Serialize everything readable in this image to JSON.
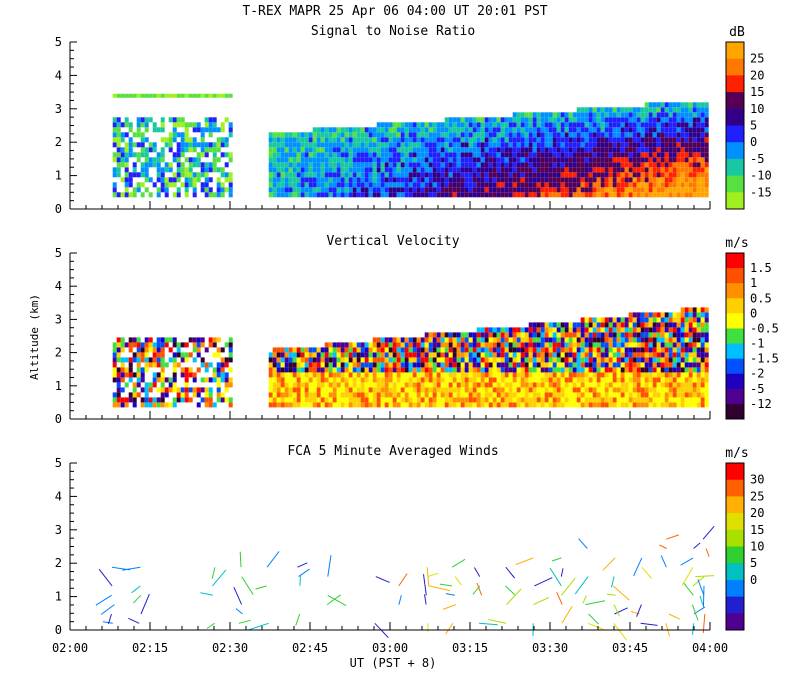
{
  "title": "T-REX  MAPR 25 Apr 06  04:00 UT  20:01  PST",
  "x_axis": {
    "label": "UT  (PST + 8)",
    "ticks": [
      "02:00",
      "02:15",
      "02:30",
      "02:45",
      "03:00",
      "03:15",
      "03:30",
      "03:45",
      "04:00"
    ],
    "range_minutes": [
      120,
      240
    ]
  },
  "y_axis_label": "Altitude (km)",
  "chart_data": [
    {
      "type": "heatmap",
      "title": "Signal to Noise Ratio",
      "unit": "dB",
      "ylim": [
        0,
        5
      ],
      "yticks": [
        "0",
        "1",
        "2",
        "3",
        "4",
        "5"
      ],
      "colorbar": {
        "labels": [
          "25",
          "20",
          "15",
          "10",
          "5",
          "0",
          "-5",
          "-10",
          "-15"
        ],
        "colors": [
          "#ffa500",
          "#ff7800",
          "#ff2000",
          "#550055",
          "#30008a",
          "#2020ff",
          "#0090ff",
          "#18c8a0",
          "#58e040",
          "#a0f020"
        ]
      },
      "data_gap_minutes": [
        150,
        157
      ]
    },
    {
      "type": "heatmap",
      "title": "Vertical Velocity",
      "unit": "m/s",
      "ylim": [
        0,
        5
      ],
      "yticks": [
        "0",
        "1",
        "2",
        "3",
        "4",
        "5"
      ],
      "colorbar": {
        "labels": [
          "1.5",
          "1",
          "0.5",
          "0",
          "-0.5",
          "-1",
          "-1.5",
          "-2",
          "-5",
          "-12"
        ],
        "colors": [
          "#ff0000",
          "#ff5000",
          "#ff9000",
          "#ffd000",
          "#ffff00",
          "#40e040",
          "#00c0ff",
          "#0050ff",
          "#2000c0",
          "#500090",
          "#300030"
        ]
      },
      "data_gap_minutes": [
        150,
        157
      ]
    },
    {
      "type": "scatter",
      "title": "FCA 5 Minute Averaged Winds",
      "unit": "m/s",
      "ylim": [
        0,
        5
      ],
      "yticks": [
        "0",
        "1",
        "2",
        "3",
        "4",
        "5"
      ],
      "colorbar": {
        "labels": [
          "30",
          "25",
          "20",
          "15",
          "10",
          "5",
          "0"
        ],
        "colors": [
          "#ff0000",
          "#ff6000",
          "#ffb000",
          "#e0e000",
          "#a8e000",
          "#30d030",
          "#00c0c0",
          "#0080ff",
          "#2020d0",
          "#500090"
        ]
      },
      "series": [
        {
          "name": "barb_times_minutes",
          "values": [
            128,
            133,
            147,
            152,
            157,
            163,
            168,
            172,
            177,
            182,
            187,
            192,
            197,
            202,
            207,
            212,
            217,
            222,
            227,
            232,
            237,
            239
          ]
        }
      ]
    }
  ]
}
